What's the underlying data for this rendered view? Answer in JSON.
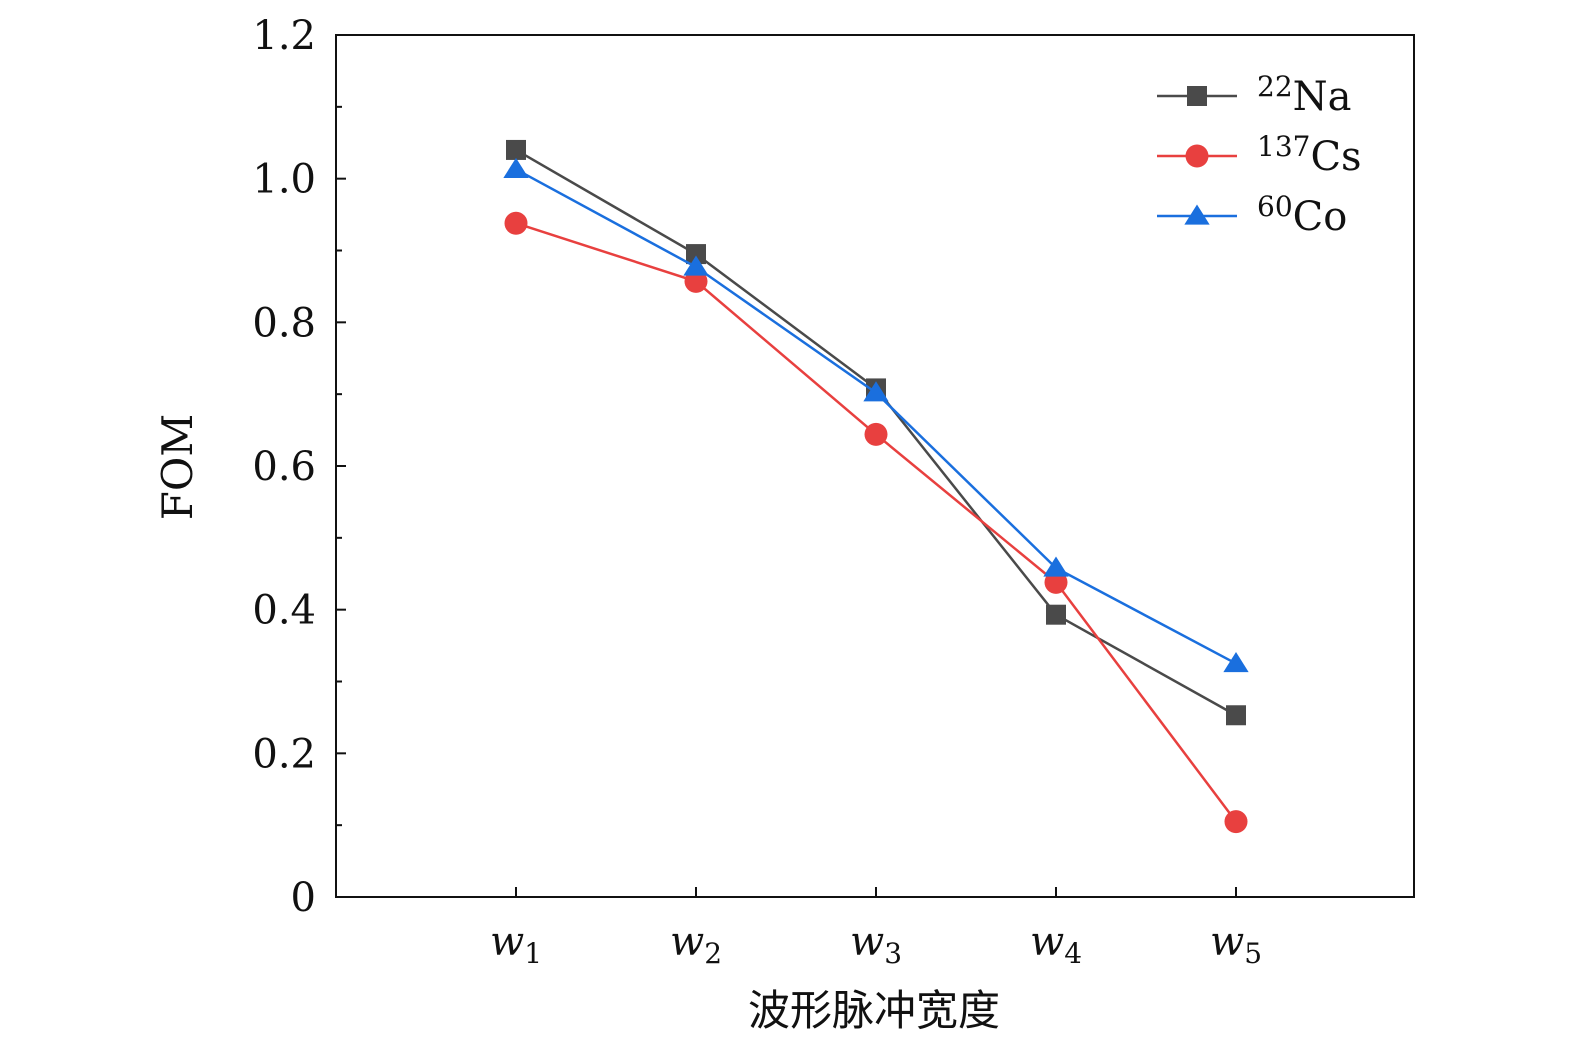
{
  "chart_data": {
    "type": "line",
    "title": "",
    "xlabel": "波形脉冲宽度",
    "ylabel": "FOM",
    "categories": [
      {
        "base": "w",
        "sub": "1"
      },
      {
        "base": "w",
        "sub": "2"
      },
      {
        "base": "w",
        "sub": "3"
      },
      {
        "base": "w",
        "sub": "4"
      },
      {
        "base": "w",
        "sub": "5"
      }
    ],
    "ylim": [
      0,
      1.2
    ],
    "yticks": [
      "0",
      "0.2",
      "0.4",
      "0.6",
      "0.8",
      "1.0",
      "1.2"
    ],
    "ytick_values": [
      0,
      0.2,
      0.4,
      0.6,
      0.8,
      1.0,
      1.2
    ],
    "grid": false,
    "legend_position": "top-right",
    "series": [
      {
        "name_sup": "22",
        "name_base": "Na",
        "color": "#4a4a4a",
        "marker": "square",
        "values": [
          1.04,
          0.895,
          0.708,
          0.393,
          0.253
        ]
      },
      {
        "name_sup": "137",
        "name_base": "Cs",
        "color": "#e8403f",
        "marker": "circle",
        "values": [
          0.938,
          0.857,
          0.644,
          0.438,
          0.105
        ]
      },
      {
        "name_sup": "60",
        "name_base": "Co",
        "color": "#1a6fde",
        "marker": "triangle",
        "values": [
          1.013,
          0.877,
          0.702,
          0.458,
          0.325
        ]
      }
    ]
  }
}
